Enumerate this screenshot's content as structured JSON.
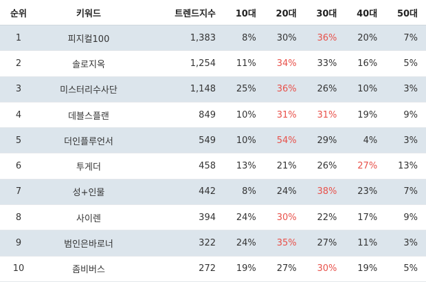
{
  "headers": [
    "순위",
    "키워드",
    "트렌드지수",
    "10대",
    "20대",
    "30대",
    "40대",
    "50대"
  ],
  "highlight_color": "#e8514a",
  "rows": [
    {
      "rank": "1",
      "keyword": "피지컬100",
      "trend": "1,383",
      "p10": "8%",
      "p20": "30%",
      "p30": "36%",
      "p40": "20%",
      "p50": "7%",
      "hl": [
        "p30"
      ]
    },
    {
      "rank": "2",
      "keyword": "솔로지옥",
      "trend": "1,254",
      "p10": "11%",
      "p20": "34%",
      "p30": "33%",
      "p40": "16%",
      "p50": "5%",
      "hl": [
        "p20"
      ]
    },
    {
      "rank": "3",
      "keyword": "미스터리수사단",
      "trend": "1,148",
      "p10": "25%",
      "p20": "36%",
      "p30": "26%",
      "p40": "10%",
      "p50": "3%",
      "hl": [
        "p20"
      ]
    },
    {
      "rank": "4",
      "keyword": "데블스플랜",
      "trend": "849",
      "p10": "10%",
      "p20": "31%",
      "p30": "31%",
      "p40": "19%",
      "p50": "9%",
      "hl": [
        "p20",
        "p30"
      ]
    },
    {
      "rank": "5",
      "keyword": "더인플루언서",
      "trend": "549",
      "p10": "10%",
      "p20": "54%",
      "p30": "29%",
      "p40": "4%",
      "p50": "3%",
      "hl": [
        "p20"
      ]
    },
    {
      "rank": "6",
      "keyword": "투게더",
      "trend": "458",
      "p10": "13%",
      "p20": "21%",
      "p30": "26%",
      "p40": "27%",
      "p50": "13%",
      "hl": [
        "p40"
      ]
    },
    {
      "rank": "7",
      "keyword": "성+인물",
      "trend": "442",
      "p10": "8%",
      "p20": "24%",
      "p30": "38%",
      "p40": "23%",
      "p50": "7%",
      "hl": [
        "p30"
      ]
    },
    {
      "rank": "8",
      "keyword": "사이렌",
      "trend": "394",
      "p10": "24%",
      "p20": "30%",
      "p30": "22%",
      "p40": "17%",
      "p50": "9%",
      "hl": [
        "p20"
      ]
    },
    {
      "rank": "9",
      "keyword": "범인은바로너",
      "trend": "322",
      "p10": "24%",
      "p20": "35%",
      "p30": "27%",
      "p40": "11%",
      "p50": "3%",
      "hl": [
        "p20"
      ]
    },
    {
      "rank": "10",
      "keyword": "좀비버스",
      "trend": "272",
      "p10": "19%",
      "p20": "27%",
      "p30": "30%",
      "p40": "19%",
      "p50": "5%",
      "hl": [
        "p30"
      ]
    }
  ]
}
